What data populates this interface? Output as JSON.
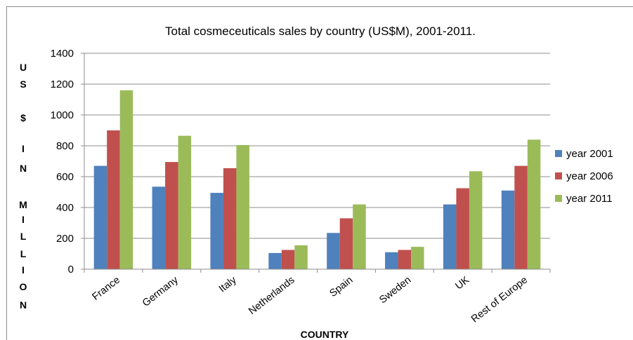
{
  "chart_data": {
    "type": "bar",
    "title": "Total cosmeceuticals sales by country (US$M), 2001-2011.",
    "xlabel": "COUNTRY",
    "ylabel": "US $ IN MILLION",
    "ylabel_letters": [
      "U",
      "S",
      "$",
      "I",
      "N",
      "M",
      "I",
      "L",
      "L",
      "I",
      "O",
      "N"
    ],
    "categories": [
      "France",
      "Germany",
      "Italy",
      "Netherlands",
      "Spain",
      "Sweden",
      "UK",
      "Rest of Europe"
    ],
    "series": [
      {
        "name": "year 2001",
        "color": "#4F81BD",
        "values": [
          670,
          535,
          495,
          105,
          235,
          110,
          420,
          510
        ]
      },
      {
        "name": "year 2006",
        "color": "#C0504D",
        "values": [
          900,
          695,
          655,
          125,
          330,
          125,
          525,
          670
        ]
      },
      {
        "name": "year 2011",
        "color": "#9BBB59",
        "values": [
          1160,
          865,
          805,
          155,
          420,
          145,
          635,
          840
        ]
      }
    ],
    "ylim": [
      0,
      1400
    ],
    "yticks": [
      0,
      200,
      400,
      600,
      800,
      1000,
      1200,
      1400
    ],
    "grid": true,
    "legend_position": "right"
  }
}
